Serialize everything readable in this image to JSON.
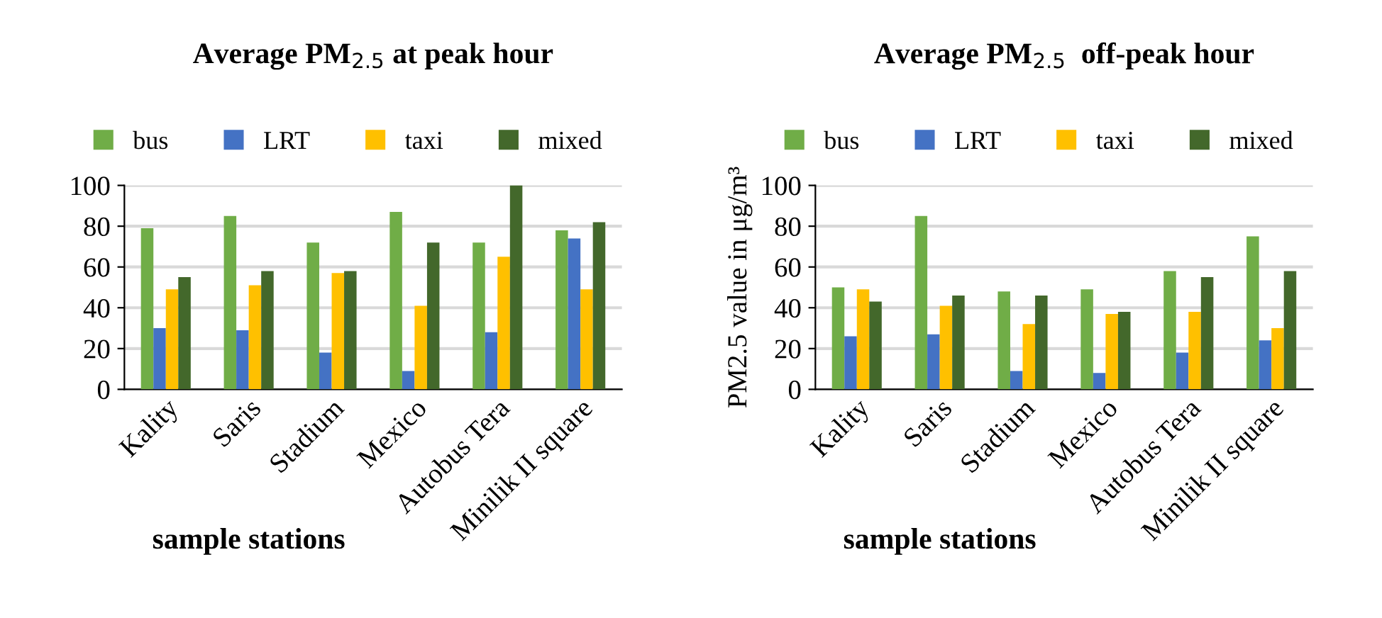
{
  "chart_data": [
    {
      "type": "bar",
      "title": "Average PM$_{2.5}$ at peak hour",
      "xlabel": "sample stations",
      "categories": [
        "Kality",
        "Saris",
        "Stadium",
        "Mexico",
        "Autobus Tera",
        "Minilik II square"
      ],
      "ylim": [
        0,
        100
      ],
      "yticks": [
        0,
        20,
        40,
        60,
        80,
        100
      ],
      "grid": "y",
      "legend": "top",
      "series": [
        {
          "name": "bus",
          "color": "#70ad47",
          "values": [
            79,
            85,
            72,
            87,
            72,
            78
          ]
        },
        {
          "name": "LRT",
          "color": "#4472c4",
          "values": [
            30,
            29,
            18,
            9,
            28,
            74
          ]
        },
        {
          "name": "taxi",
          "color": "#ffc000",
          "values": [
            49,
            51,
            57,
            41,
            65,
            49
          ]
        },
        {
          "name": "mixed",
          "color": "#43682b",
          "values": [
            55,
            58,
            58,
            72,
            100,
            82
          ]
        }
      ]
    },
    {
      "type": "bar",
      "title": "Average PM$_{2.5}$  off-peak hour",
      "xlabel": "sample stations",
      "ylabel": "PM2.5 value in μg/m³",
      "categories": [
        "Kality",
        "Saris",
        "Stadium",
        "Mexico",
        "Autobus Tera",
        "Minilik II square"
      ],
      "ylim": [
        0,
        100
      ],
      "yticks": [
        0,
        20,
        40,
        60,
        80,
        100
      ],
      "grid": "y",
      "legend": "top",
      "series": [
        {
          "name": "bus",
          "color": "#70ad47",
          "values": [
            50,
            85,
            48,
            49,
            58,
            75
          ]
        },
        {
          "name": "LRT",
          "color": "#4472c4",
          "values": [
            26,
            27,
            9,
            8,
            18,
            24
          ]
        },
        {
          "name": "taxi",
          "color": "#ffc000",
          "values": [
            49,
            41,
            32,
            37,
            38,
            30
          ]
        },
        {
          "name": "mixed",
          "color": "#43682b",
          "values": [
            43,
            46,
            46,
            38,
            55,
            58
          ]
        }
      ]
    }
  ]
}
